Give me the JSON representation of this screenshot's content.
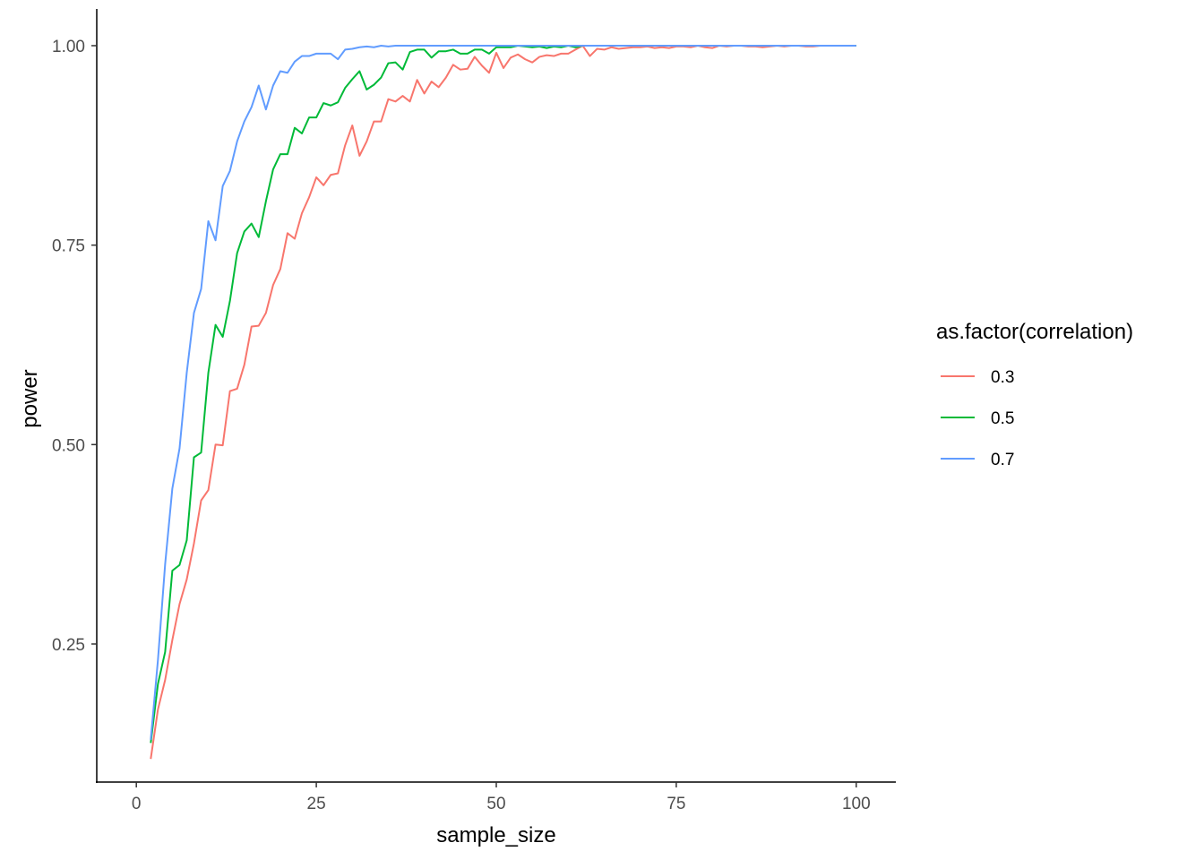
{
  "chart_data": {
    "type": "line",
    "xlabel": "sample_size",
    "ylabel": "power",
    "xlim": [
      -5.5,
      105.5
    ],
    "ylim": [
      0.077,
      1.046
    ],
    "x_ticks": [
      0,
      25,
      50,
      75,
      100
    ],
    "x_tick_labels": [
      "0",
      "25",
      "50",
      "75",
      "100"
    ],
    "y_ticks": [
      0.25,
      0.5,
      0.75,
      1.0
    ],
    "y_tick_labels": [
      "0.25",
      "0.50",
      "0.75",
      "1.00"
    ],
    "grid": false,
    "legend": {
      "title": "as.factor(correlation)",
      "placement": "right"
    },
    "series": [
      {
        "name": "0.3",
        "color": "#F8766D",
        "x": [
          2,
          3,
          4,
          5,
          6,
          7,
          8,
          9,
          10,
          11,
          12,
          13,
          14,
          15,
          16,
          17,
          18,
          19,
          20,
          21,
          22,
          23,
          24,
          25,
          26,
          27,
          28,
          29,
          30,
          31,
          32,
          33,
          34,
          35,
          36,
          37,
          38,
          39,
          40,
          41,
          42,
          43,
          44,
          45,
          46,
          47,
          48,
          49,
          50,
          51,
          52,
          53,
          54,
          55,
          56,
          57,
          58,
          59,
          60,
          61,
          62,
          63,
          64,
          65,
          66,
          67,
          68,
          69,
          70,
          71,
          72,
          73,
          74,
          75,
          76,
          77,
          78,
          79,
          80,
          81,
          82,
          83,
          84,
          85,
          86,
          87,
          88,
          89,
          90,
          91,
          92,
          93,
          94,
          95,
          96,
          97,
          98,
          99,
          100
        ],
        "y": [
          0.106,
          0.168,
          0.205,
          0.255,
          0.3,
          0.331,
          0.376,
          0.43,
          0.443,
          0.5,
          0.499,
          0.567,
          0.57,
          0.6,
          0.648,
          0.649,
          0.665,
          0.7,
          0.72,
          0.765,
          0.758,
          0.79,
          0.81,
          0.835,
          0.825,
          0.838,
          0.84,
          0.875,
          0.9,
          0.862,
          0.88,
          0.905,
          0.905,
          0.933,
          0.93,
          0.937,
          0.93,
          0.957,
          0.94,
          0.955,
          0.948,
          0.96,
          0.976,
          0.97,
          0.971,
          0.986,
          0.975,
          0.966,
          0.991,
          0.972,
          0.985,
          0.989,
          0.983,
          0.979,
          0.986,
          0.988,
          0.987,
          0.99,
          0.99,
          0.995,
          1.0,
          0.987,
          0.996,
          0.995,
          0.998,
          0.996,
          0.997,
          0.998,
          0.998,
          0.999,
          0.997,
          0.998,
          0.997,
          0.999,
          0.999,
          0.998,
          1.0,
          0.998,
          0.997,
          1.0,
          0.999,
          1.0,
          1.0,
          0.999,
          0.999,
          0.998,
          0.999,
          1.0,
          0.999,
          1.0,
          1.0,
          0.999,
          0.999,
          1.0,
          1.0,
          1.0,
          1.0,
          1.0,
          1.0
        ]
      },
      {
        "name": "0.5",
        "color": "#00BA38",
        "x": [
          2,
          3,
          4,
          5,
          6,
          7,
          8,
          9,
          10,
          11,
          12,
          13,
          14,
          15,
          16,
          17,
          18,
          19,
          20,
          21,
          22,
          23,
          24,
          25,
          26,
          27,
          28,
          29,
          30,
          31,
          32,
          33,
          34,
          35,
          36,
          37,
          38,
          39,
          40,
          41,
          42,
          43,
          44,
          45,
          46,
          47,
          48,
          49,
          50,
          51,
          52,
          53,
          54,
          55,
          56,
          57,
          58,
          59,
          60,
          61,
          62,
          63,
          64,
          65,
          66,
          67,
          68,
          69,
          70,
          71,
          72,
          73,
          74,
          75,
          76,
          77,
          78,
          79,
          80,
          81,
          82,
          83,
          84,
          85,
          86,
          87,
          88,
          89,
          90,
          91,
          92,
          93,
          94,
          95,
          96,
          97,
          98,
          99,
          100
        ],
        "y": [
          0.126,
          0.2,
          0.24,
          0.342,
          0.349,
          0.38,
          0.484,
          0.49,
          0.59,
          0.65,
          0.635,
          0.68,
          0.74,
          0.767,
          0.777,
          0.76,
          0.805,
          0.845,
          0.864,
          0.864,
          0.897,
          0.89,
          0.91,
          0.91,
          0.928,
          0.925,
          0.929,
          0.947,
          0.958,
          0.968,
          0.945,
          0.951,
          0.96,
          0.978,
          0.979,
          0.97,
          0.992,
          0.995,
          0.995,
          0.985,
          0.993,
          0.993,
          0.995,
          0.99,
          0.99,
          0.995,
          0.995,
          0.99,
          0.998,
          0.998,
          0.998,
          1.0,
          0.999,
          0.998,
          0.999,
          0.997,
          0.999,
          0.998,
          1.0,
          0.998,
          1.0,
          1.0,
          1.0,
          1.0,
          1.0,
          1.0,
          1.0,
          1.0,
          1.0,
          1.0,
          1.0,
          1.0,
          1.0,
          1.0,
          1.0,
          1.0,
          1.0,
          1.0,
          1.0,
          1.0,
          1.0,
          1.0,
          1.0,
          1.0,
          1.0,
          1.0,
          1.0,
          1.0,
          1.0,
          1.0,
          1.0,
          1.0,
          1.0,
          1.0,
          1.0,
          1.0,
          1.0,
          1.0,
          1.0
        ]
      },
      {
        "name": "0.7",
        "color": "#619CFF",
        "x": [
          2,
          3,
          4,
          5,
          6,
          7,
          8,
          9,
          10,
          11,
          12,
          13,
          14,
          15,
          16,
          17,
          18,
          19,
          20,
          21,
          22,
          23,
          24,
          25,
          26,
          27,
          28,
          29,
          30,
          31,
          32,
          33,
          34,
          35,
          36,
          37,
          38,
          39,
          40,
          41,
          42,
          43,
          44,
          45,
          46,
          47,
          48,
          49,
          50,
          51,
          52,
          53,
          54,
          55,
          56,
          57,
          58,
          59,
          60,
          61,
          62,
          63,
          64,
          65,
          66,
          67,
          68,
          69,
          70,
          71,
          72,
          73,
          74,
          75,
          76,
          77,
          78,
          79,
          80,
          81,
          82,
          83,
          84,
          85,
          86,
          87,
          88,
          89,
          90,
          91,
          92,
          93,
          94,
          95,
          96,
          97,
          98,
          99,
          100
        ],
        "y": [
          0.13,
          0.23,
          0.35,
          0.445,
          0.495,
          0.59,
          0.665,
          0.695,
          0.78,
          0.756,
          0.824,
          0.843,
          0.88,
          0.905,
          0.923,
          0.95,
          0.92,
          0.95,
          0.968,
          0.966,
          0.98,
          0.987,
          0.987,
          0.99,
          0.99,
          0.99,
          0.983,
          0.995,
          0.996,
          0.998,
          0.999,
          0.998,
          1.0,
          0.999,
          1.0,
          1.0,
          1.0,
          1.0,
          1.0,
          1.0,
          1.0,
          1.0,
          1.0,
          1.0,
          1.0,
          1.0,
          1.0,
          1.0,
          1.0,
          1.0,
          1.0,
          1.0,
          1.0,
          1.0,
          1.0,
          1.0,
          1.0,
          1.0,
          1.0,
          1.0,
          1.0,
          1.0,
          1.0,
          1.0,
          1.0,
          1.0,
          1.0,
          1.0,
          1.0,
          1.0,
          1.0,
          1.0,
          1.0,
          1.0,
          1.0,
          1.0,
          1.0,
          1.0,
          1.0,
          1.0,
          1.0,
          1.0,
          1.0,
          1.0,
          1.0,
          1.0,
          1.0,
          1.0,
          1.0,
          1.0,
          1.0,
          1.0,
          1.0,
          1.0,
          1.0,
          1.0,
          1.0,
          1.0,
          1.0
        ]
      }
    ]
  }
}
